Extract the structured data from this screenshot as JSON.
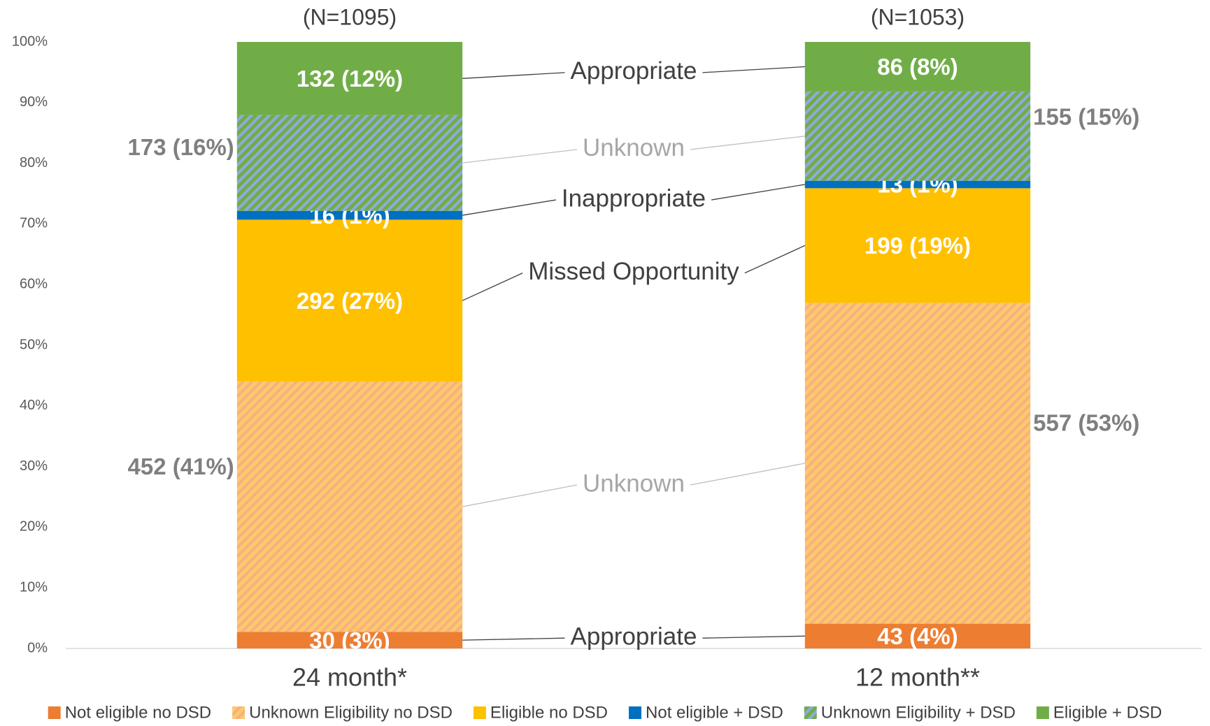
{
  "chart_data": {
    "type": "stacked_bar",
    "categories": [
      "24 month*",
      "12 month**"
    ],
    "category_totals": [
      "(N=1095)",
      "(N=1053)"
    ],
    "series": [
      {
        "name": "Not eligible no DSD",
        "color": "#ed7d31",
        "values": [
          2.74,
          4.08
        ],
        "value_labels": [
          "30 (3%)",
          "43 (4%)"
        ]
      },
      {
        "name": "Unknown Eligibility no DSD",
        "color": "#ffc968",
        "hatch_color": "#f4b183",
        "values": [
          41.28,
          52.9
        ],
        "value_labels": [
          "452 (41%)",
          "557 (53%)"
        ]
      },
      {
        "name": "Eligible no DSD",
        "color": "#ffc000",
        "values": [
          26.67,
          18.9
        ],
        "value_labels": [
          "292 (27%)",
          "199 (19%)"
        ]
      },
      {
        "name": "Not eligible + DSD",
        "color": "#0070c0",
        "values": [
          1.46,
          1.23
        ],
        "value_labels": [
          "16 (1%)",
          "13 (1%)"
        ]
      },
      {
        "name": "Unknown Eligibility + DSD",
        "color": "#70ad47",
        "hatch_color": "#8faadc",
        "values": [
          15.8,
          14.72
        ],
        "value_labels": [
          "173 (16%)",
          "155 (15%)"
        ]
      },
      {
        "name": "Eligible + DSD",
        "color": "#70ad47",
        "values": [
          12.05,
          8.17
        ],
        "value_labels": [
          "132 (12%)",
          "86 (8%)"
        ]
      }
    ],
    "annotations": [
      {
        "text": "Appropriate",
        "color": "#404040"
      },
      {
        "text": "Unknown",
        "color": "#a6a6a6"
      },
      {
        "text": "Missed Opportunity",
        "color": "#404040"
      },
      {
        "text": "Inappropriate",
        "color": "#404040"
      },
      {
        "text": "Unknown",
        "color": "#a6a6a6"
      },
      {
        "text": "Appropriate",
        "color": "#404040"
      }
    ],
    "ylim": [
      0,
      100
    ],
    "yticks": [
      {
        "value": 0,
        "label": "0%"
      },
      {
        "value": 10,
        "label": "10%"
      },
      {
        "value": 20,
        "label": "20%"
      },
      {
        "value": 30,
        "label": "30%"
      },
      {
        "value": 40,
        "label": "40%"
      },
      {
        "value": 50,
        "label": "50%"
      },
      {
        "value": 60,
        "label": "60%"
      },
      {
        "value": 70,
        "label": "70%"
      },
      {
        "value": 80,
        "label": "80%"
      },
      {
        "value": 90,
        "label": "90%"
      },
      {
        "value": 100,
        "label": "100%"
      }
    ],
    "legend": "bottom"
  }
}
